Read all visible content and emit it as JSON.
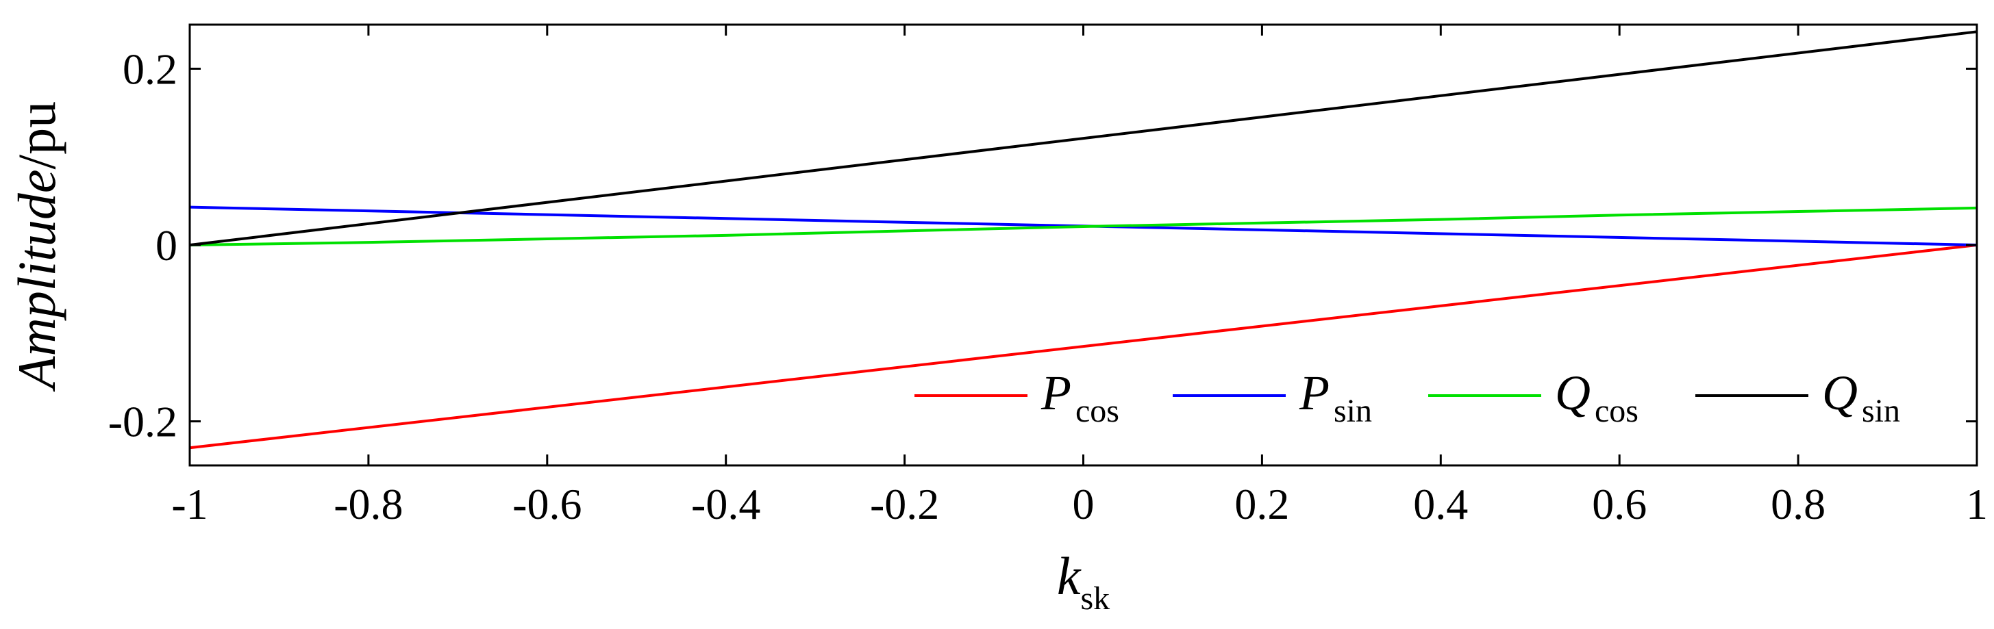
{
  "chart_data": {
    "type": "line",
    "x": [
      -1,
      1
    ],
    "xlim": [
      -1,
      1
    ],
    "ylim": [
      -0.25,
      0.25
    ],
    "xticks": [
      -1,
      -0.8,
      -0.6,
      -0.4,
      -0.2,
      0,
      0.2,
      0.4,
      0.6,
      0.8,
      1
    ],
    "xtick_labels": [
      "-1",
      "-0.8",
      "-0.6",
      "-0.4",
      "-0.2",
      "0",
      "0.2",
      "0.4",
      "0.6",
      "0.8",
      "1"
    ],
    "yticks": [
      -0.2,
      0,
      0.2
    ],
    "ytick_labels": [
      "-0.2",
      "0",
      "0.2"
    ],
    "xlabel": {
      "main": "k",
      "sub": "sk"
    },
    "ylabel": {
      "italic": "Amplitude",
      "rest": "/pu"
    },
    "grid": false,
    "legend_position": "bottom-right",
    "series": [
      {
        "name": "P",
        "sub": "cos",
        "color": "#ff0000",
        "x": [
          -1,
          1
        ],
        "values": [
          -0.23,
          0.0
        ]
      },
      {
        "name": "P",
        "sub": "sin",
        "color": "#0000ff",
        "x": [
          -1,
          1
        ],
        "values": [
          0.043,
          0.0
        ]
      },
      {
        "name": "Q",
        "sub": "cos",
        "color": "#00e000",
        "x": [
          -1,
          -0.8,
          -0.6,
          -0.4,
          -0.2,
          0,
          0.2,
          0.4,
          0.6,
          0.8,
          1
        ],
        "values": [
          0.0,
          0.003,
          0.007,
          0.011,
          0.016,
          0.021,
          0.025,
          0.029,
          0.034,
          0.038,
          0.042
        ]
      },
      {
        "name": "Q",
        "sub": "sin",
        "color": "#000000",
        "x": [
          -1,
          1
        ],
        "values": [
          0.0,
          0.242
        ]
      }
    ]
  }
}
